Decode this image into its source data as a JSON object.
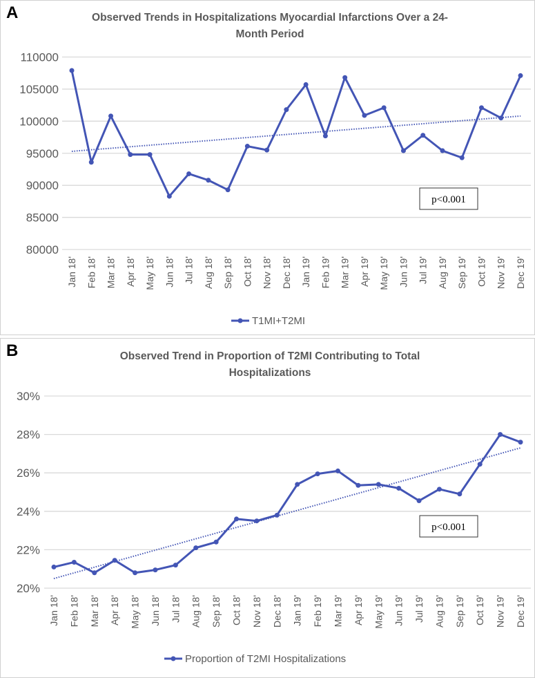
{
  "chart_data": [
    {
      "panel_label": "A",
      "type": "line",
      "title": "Observed Trends in Hospitalizations Myocardial Infarctions Over a 24-Month Period",
      "title_line1": "Observed Trends in Hospitalizations Myocardial Infarctions Over a 24-",
      "title_line2": "Month Period",
      "categories": [
        "Jan 18'",
        "Feb 18'",
        "Mar 18'",
        "Apr 18'",
        "May 18'",
        "Jun 18'",
        "Jul 18'",
        "Aug 18'",
        "Sep 18'",
        "Oct 18'",
        "Nov 18'",
        "Dec 18'",
        "Jan 19'",
        "Feb 19'",
        "Mar 19'",
        "Apr 19'",
        "May 19'",
        "Jun 19'",
        "Jul 19'",
        "Aug 19'",
        "Sep 19'",
        "Oct 19'",
        "Nov 19'",
        "Dec 19'"
      ],
      "series": [
        {
          "name": "T1MI+T2MI",
          "values": [
            107900,
            93600,
            100800,
            94800,
            94800,
            88300,
            91800,
            90800,
            89300,
            96100,
            95500,
            101800,
            105700,
            97700,
            106800,
            100900,
            102100,
            95400,
            97800,
            95400,
            94300,
            102100,
            100500,
            107100
          ]
        }
      ],
      "trendline": {
        "style": "dotted",
        "start": 95300,
        "end": 100800
      },
      "ylim": [
        80000,
        110000
      ],
      "yticks": [
        80000,
        85000,
        90000,
        95000,
        100000,
        105000,
        110000
      ],
      "ytick_labels": [
        "80000",
        "85000",
        "90000",
        "95000",
        "100000",
        "105000",
        "110000"
      ],
      "xlabel": "",
      "ylabel": "",
      "grid": true,
      "legend_position": "bottom",
      "annotation": "p<0.001",
      "color": "#4355B5"
    },
    {
      "panel_label": "B",
      "type": "line",
      "title": "Observed Trend in Proportion of T2MI Contributing to Total Hospitalizations",
      "title_line1": "Observed Trend in Proportion of T2MI Contributing to Total",
      "title_line2": "Hospitalizations",
      "categories": [
        "Jan 18'",
        "Feb 18'",
        "Mar 18'",
        "Apr 18'",
        "May 18'",
        "Jun 18'",
        "Jul 18'",
        "Aug 18'",
        "Sep 18'",
        "Oct 18'",
        "Nov 18'",
        "Dec 18'",
        "Jan 19'",
        "Feb 19'",
        "Mar 19'",
        "Apr 19'",
        "May 19'",
        "Jun 19'",
        "Jul 19'",
        "Aug 19'",
        "Sep 19'",
        "Oct 19'",
        "Nov 19'",
        "Dec 19'"
      ],
      "series": [
        {
          "name": "Proportion of T2MI Hospitalizations",
          "values": [
            21.1,
            21.35,
            20.8,
            21.45,
            20.8,
            20.95,
            21.2,
            22.1,
            22.4,
            23.6,
            23.5,
            23.8,
            25.4,
            25.95,
            26.1,
            25.35,
            25.4,
            25.2,
            24.55,
            25.15,
            24.9,
            26.45,
            28.0,
            27.6
          ]
        }
      ],
      "trendline": {
        "style": "dotted",
        "start": 20.5,
        "end": 27.3
      },
      "ylim": [
        20,
        30
      ],
      "yticks": [
        20,
        22,
        24,
        26,
        28,
        30
      ],
      "ytick_labels": [
        "20%",
        "22%",
        "24%",
        "26%",
        "28%",
        "30%"
      ],
      "xlabel": "",
      "ylabel": "",
      "grid": true,
      "legend_position": "bottom",
      "annotation": "p<0.001",
      "color": "#4355B5"
    }
  ]
}
